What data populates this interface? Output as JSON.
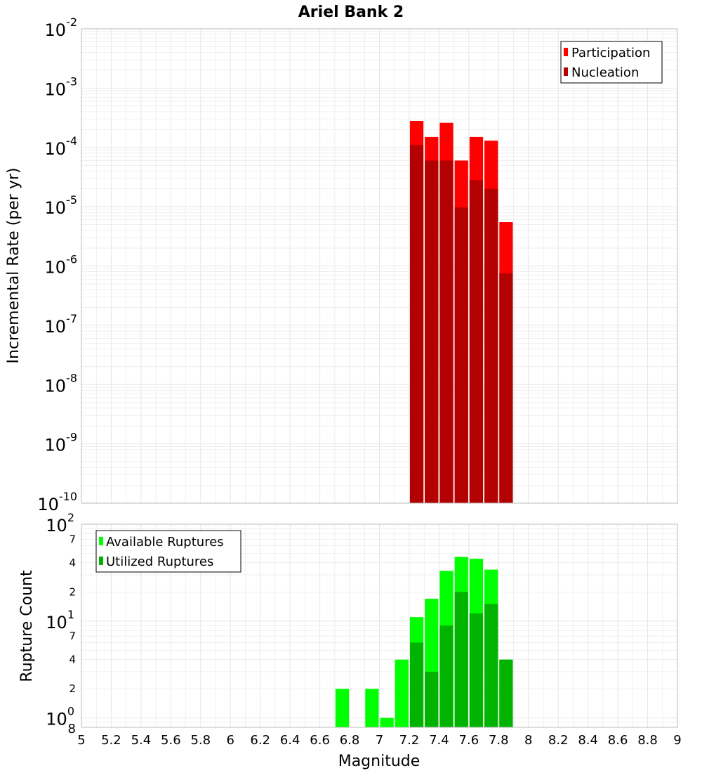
{
  "title": "Ariel Bank 2",
  "colors": {
    "participation": "#ff0000",
    "nucleation": "#b30000",
    "available": "#00ff00",
    "utilized": "#00b300",
    "grid": "#e6e6e6",
    "frame": "#bbbbbb"
  },
  "chart_data": [
    {
      "type": "bar",
      "title": "Ariel Bank 2",
      "xlabel": "Magnitude",
      "ylabel": "Incremental Rate (per yr)",
      "yscale": "log",
      "xlim": [
        5,
        9
      ],
      "ylim": [
        1e-10,
        0.01
      ],
      "grid": true,
      "legend_position": "top-right",
      "bar_width": 0.1,
      "overlay": true,
      "x_ticks": [
        "5",
        "5.2",
        "5.4",
        "5.6",
        "5.8",
        "6",
        "6.2",
        "6.4",
        "6.6",
        "6.8",
        "7",
        "7.2",
        "7.4",
        "7.6",
        "7.8",
        "8",
        "8.2",
        "8.4",
        "8.6",
        "8.8",
        "9"
      ],
      "y_ticks": [
        {
          "base": "10",
          "exp": "-10"
        },
        {
          "base": "10",
          "exp": "-9"
        },
        {
          "base": "10",
          "exp": "-8"
        },
        {
          "base": "10",
          "exp": "-7"
        },
        {
          "base": "10",
          "exp": "-6"
        },
        {
          "base": "10",
          "exp": "-5"
        },
        {
          "base": "10",
          "exp": "-4"
        },
        {
          "base": "10",
          "exp": "-3"
        },
        {
          "base": "10",
          "exp": "-2"
        }
      ],
      "x": [
        7.25,
        7.35,
        7.45,
        7.55,
        7.65,
        7.75,
        7.85
      ],
      "series": [
        {
          "name": "Participation",
          "values": [
            0.00028,
            0.00015,
            0.00026,
            6e-05,
            0.00015,
            0.00013,
            5.5e-06
          ]
        },
        {
          "name": "Nucleation",
          "values": [
            0.00011,
            6e-05,
            6e-05,
            9.7e-06,
            2.8e-05,
            2e-05,
            7.5e-07
          ]
        }
      ]
    },
    {
      "type": "bar",
      "xlabel": "Magnitude",
      "ylabel": "Rupture Count",
      "yscale": "log",
      "xlim": [
        5,
        9
      ],
      "ylim": [
        0.8,
        100
      ],
      "grid": true,
      "legend_position": "top-left",
      "bar_width": 0.1,
      "overlay": true,
      "x_ticks": [
        "5",
        "5.2",
        "5.4",
        "5.6",
        "5.8",
        "6",
        "6.2",
        "6.4",
        "6.6",
        "6.8",
        "7",
        "7.2",
        "7.4",
        "7.6",
        "7.8",
        "8",
        "8.2",
        "8.4",
        "8.6",
        "8.8",
        "9"
      ],
      "y_major_ticks": [
        {
          "base": "10",
          "exp": "0"
        },
        {
          "base": "10",
          "exp": "1"
        },
        {
          "base": "10",
          "exp": "2"
        }
      ],
      "y_minor_labels": [
        "8",
        "2",
        "4",
        "7",
        "2",
        "4",
        "7"
      ],
      "series": [
        {
          "name": "Available Ruptures",
          "x": [
            6.75,
            6.95,
            7.05,
            7.15,
            7.25,
            7.35,
            7.45,
            7.55,
            7.65,
            7.75,
            7.85
          ],
          "values": [
            2,
            2,
            1,
            4,
            11,
            17,
            33,
            46,
            44,
            34,
            4
          ]
        },
        {
          "name": "Utilized Ruptures",
          "x": [
            7.25,
            7.35,
            7.45,
            7.55,
            7.65,
            7.75,
            7.85
          ],
          "values": [
            6,
            3,
            9,
            20,
            12,
            15,
            4
          ]
        }
      ]
    }
  ]
}
